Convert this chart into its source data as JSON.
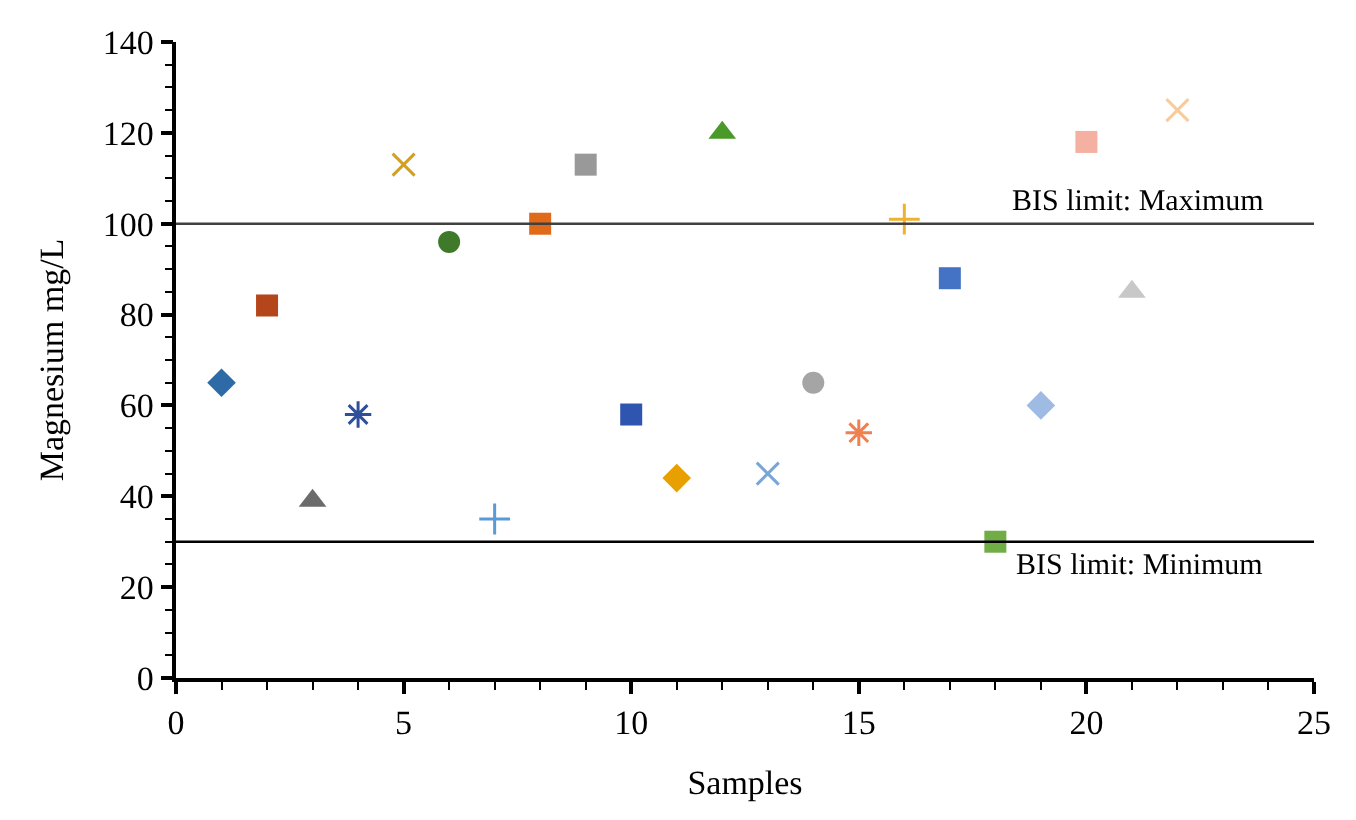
{
  "chart_data": {
    "type": "scatter",
    "xlabel": "Samples",
    "ylabel": "Magnesium mg/L",
    "xlim": [
      0,
      25
    ],
    "xticks": [
      0,
      5,
      10,
      15,
      20,
      25
    ],
    "ylim": [
      0,
      140
    ],
    "yticks": [
      0,
      20,
      40,
      60,
      80,
      100,
      120,
      140
    ],
    "series": [
      {
        "x": [
          1
        ],
        "values": [
          65
        ],
        "color": "#2e6aa6",
        "marker": "diamond"
      },
      {
        "x": [
          2
        ],
        "values": [
          82
        ],
        "color": "#b5451b",
        "marker": "square"
      },
      {
        "x": [
          3
        ],
        "values": [
          39
        ],
        "color": "#6b6b6b",
        "marker": "triangle"
      },
      {
        "x": [
          4
        ],
        "values": [
          58
        ],
        "color": "#2f4f9a",
        "marker": "cross"
      },
      {
        "x": [
          5
        ],
        "values": [
          113
        ],
        "color": "#d4a020",
        "marker": "x"
      },
      {
        "x": [
          6
        ],
        "values": [
          96
        ],
        "color": "#3f7a2a",
        "marker": "circle"
      },
      {
        "x": [
          7
        ],
        "values": [
          35
        ],
        "color": "#5b9bd5",
        "marker": "plus"
      },
      {
        "x": [
          8
        ],
        "values": [
          100
        ],
        "color": "#e06a1a",
        "marker": "square"
      },
      {
        "x": [
          9
        ],
        "values": [
          113
        ],
        "color": "#999999",
        "marker": "square"
      },
      {
        "x": [
          10
        ],
        "values": [
          58
        ],
        "color": "#2e55b0",
        "marker": "square"
      },
      {
        "x": [
          11
        ],
        "values": [
          44
        ],
        "color": "#e8a000",
        "marker": "diamond"
      },
      {
        "x": [
          12
        ],
        "values": [
          120
        ],
        "color": "#4a9a2a",
        "marker": "triangle"
      },
      {
        "x": [
          13
        ],
        "values": [
          45
        ],
        "color": "#7aa5d8",
        "marker": "x"
      },
      {
        "x": [
          14
        ],
        "values": [
          65
        ],
        "color": "#a5a5a5",
        "marker": "circle"
      },
      {
        "x": [
          15
        ],
        "values": [
          54
        ],
        "color": "#f08050",
        "marker": "cross"
      },
      {
        "x": [
          16
        ],
        "values": [
          101
        ],
        "color": "#f0b030",
        "marker": "plus"
      },
      {
        "x": [
          17
        ],
        "values": [
          88
        ],
        "color": "#4472c4",
        "marker": "square"
      },
      {
        "x": [
          18
        ],
        "values": [
          30
        ],
        "color": "#70ad47",
        "marker": "square"
      },
      {
        "x": [
          19
        ],
        "values": [
          60
        ],
        "color": "#9dbbe3",
        "marker": "diamond"
      },
      {
        "x": [
          20
        ],
        "values": [
          118
        ],
        "color": "#f4b0a0",
        "marker": "square"
      },
      {
        "x": [
          21
        ],
        "values": [
          85
        ],
        "color": "#c8c8c8",
        "marker": "triangle"
      },
      {
        "x": [
          22
        ],
        "values": [
          125
        ],
        "color": "#f8cb9a",
        "marker": "x"
      }
    ],
    "ref_lines": [
      {
        "axis": "y",
        "value": 100,
        "label": "BIS limit: Maximum",
        "color": "#404040"
      },
      {
        "axis": "y",
        "value": 30,
        "label": "BIS limit: Minimum",
        "color": "#000000"
      }
    ]
  }
}
